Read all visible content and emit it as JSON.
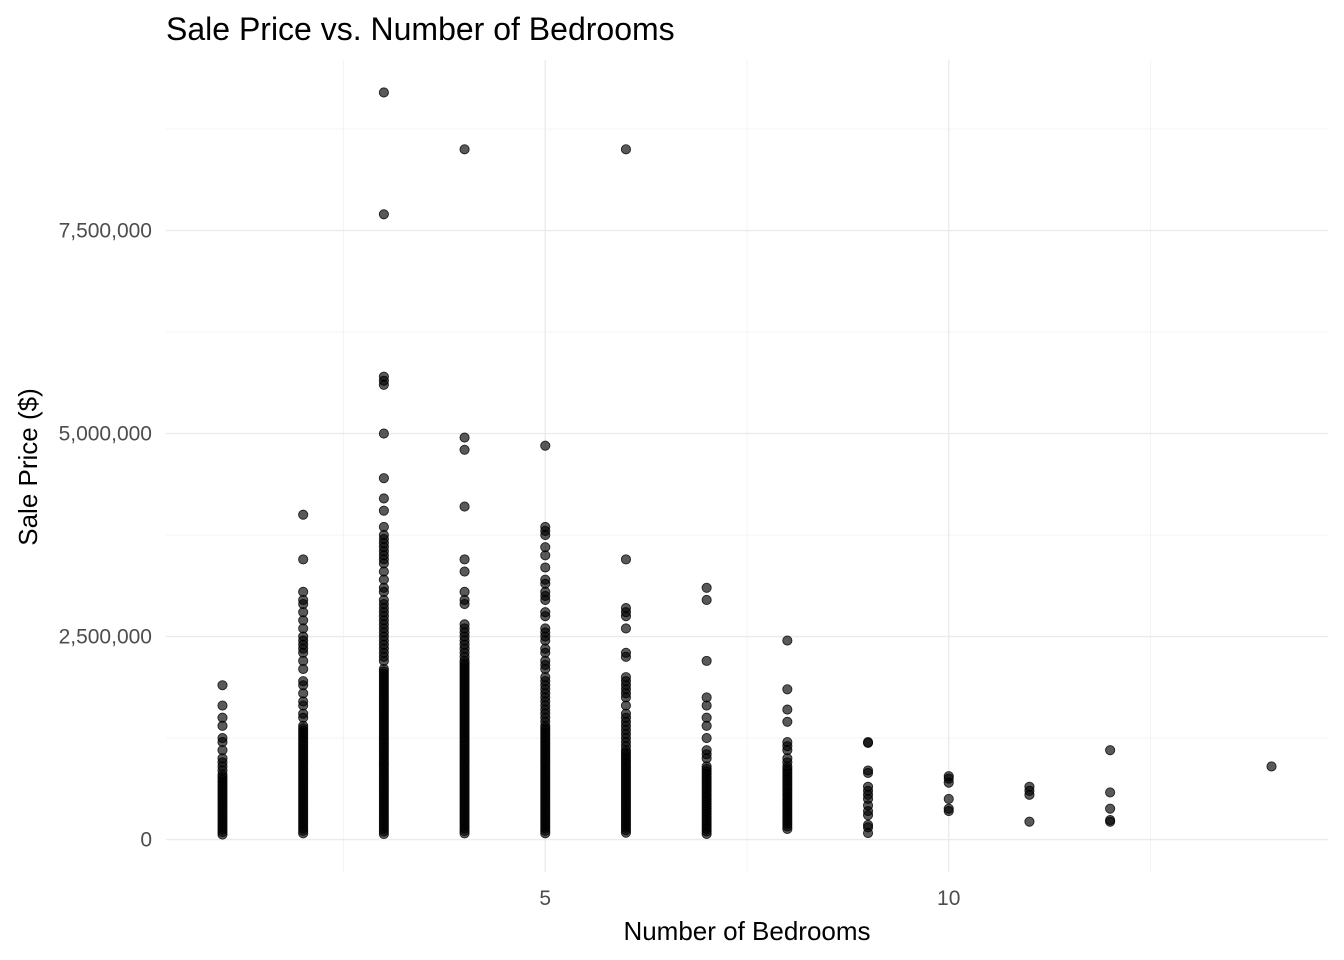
{
  "chart_data": {
    "type": "scatter",
    "title": "Sale Price vs. Number of Bedrooms",
    "xlabel": "Number of Bedrooms",
    "ylabel": "Sale Price ($)",
    "xlim": [
      0.3,
      14.7
    ],
    "ylim": [
      -400000,
      9600000
    ],
    "x_ticks": [
      5,
      10
    ],
    "x_tick_labels": [
      "5",
      "10"
    ],
    "x_minor_ticks": [
      2.5,
      7.5,
      12.5
    ],
    "y_ticks": [
      0,
      2500000,
      5000000,
      7500000
    ],
    "y_tick_labels": [
      "0",
      "2,500,000",
      "5,000,000",
      "7,500,000"
    ],
    "y_minor_ticks": [
      1250000,
      3750000,
      6250000,
      8750000
    ],
    "grid": true,
    "point_color": "#000000",
    "point_opacity": 0.65,
    "columns": [
      {
        "x": 1,
        "min": 50000,
        "max": 800000
      },
      {
        "x": 2,
        "min": 50000,
        "max": 1400000
      },
      {
        "x": 3,
        "min": 50000,
        "max": 2100000
      },
      {
        "x": 4,
        "min": 50000,
        "max": 2200000
      },
      {
        "x": 5,
        "min": 50000,
        "max": 1400000
      },
      {
        "x": 6,
        "min": 60000,
        "max": 1100000
      },
      {
        "x": 7,
        "min": 60000,
        "max": 900000
      },
      {
        "x": 8,
        "min": 120000,
        "max": 900000
      }
    ],
    "points": [
      {
        "x": 1,
        "y": 1900000
      },
      {
        "x": 1,
        "y": 1650000
      },
      {
        "x": 1,
        "y": 1500000
      },
      {
        "x": 1,
        "y": 1400000
      },
      {
        "x": 1,
        "y": 1250000
      },
      {
        "x": 1,
        "y": 1200000
      },
      {
        "x": 1,
        "y": 1100000
      },
      {
        "x": 1,
        "y": 1000000
      },
      {
        "x": 1,
        "y": 950000
      },
      {
        "x": 1,
        "y": 900000
      },
      {
        "x": 1,
        "y": 850000
      },
      {
        "x": 2,
        "y": 4000000
      },
      {
        "x": 2,
        "y": 3450000
      },
      {
        "x": 2,
        "y": 3050000
      },
      {
        "x": 2,
        "y": 2950000
      },
      {
        "x": 2,
        "y": 2900000
      },
      {
        "x": 2,
        "y": 2800000
      },
      {
        "x": 2,
        "y": 2700000
      },
      {
        "x": 2,
        "y": 2600000
      },
      {
        "x": 2,
        "y": 2500000
      },
      {
        "x": 2,
        "y": 2450000
      },
      {
        "x": 2,
        "y": 2400000
      },
      {
        "x": 2,
        "y": 2350000
      },
      {
        "x": 2,
        "y": 2300000
      },
      {
        "x": 2,
        "y": 2200000
      },
      {
        "x": 2,
        "y": 2100000
      },
      {
        "x": 2,
        "y": 1950000
      },
      {
        "x": 2,
        "y": 1900000
      },
      {
        "x": 2,
        "y": 1800000
      },
      {
        "x": 2,
        "y": 1700000
      },
      {
        "x": 2,
        "y": 1650000
      },
      {
        "x": 2,
        "y": 1550000
      },
      {
        "x": 2,
        "y": 1500000
      },
      {
        "x": 3,
        "y": 9200000
      },
      {
        "x": 3,
        "y": 7700000
      },
      {
        "x": 3,
        "y": 5700000
      },
      {
        "x": 3,
        "y": 5650000
      },
      {
        "x": 3,
        "y": 5600000
      },
      {
        "x": 3,
        "y": 5000000
      },
      {
        "x": 3,
        "y": 4450000
      },
      {
        "x": 3,
        "y": 4200000
      },
      {
        "x": 3,
        "y": 4050000
      },
      {
        "x": 3,
        "y": 3850000
      },
      {
        "x": 3,
        "y": 3750000
      },
      {
        "x": 3,
        "y": 3700000
      },
      {
        "x": 3,
        "y": 3650000
      },
      {
        "x": 3,
        "y": 3600000
      },
      {
        "x": 3,
        "y": 3550000
      },
      {
        "x": 3,
        "y": 3500000
      },
      {
        "x": 3,
        "y": 3450000
      },
      {
        "x": 3,
        "y": 3400000
      },
      {
        "x": 3,
        "y": 3300000
      },
      {
        "x": 3,
        "y": 3200000
      },
      {
        "x": 3,
        "y": 3100000
      },
      {
        "x": 3,
        "y": 3050000
      },
      {
        "x": 3,
        "y": 2950000
      },
      {
        "x": 3,
        "y": 2900000
      },
      {
        "x": 3,
        "y": 2850000
      },
      {
        "x": 3,
        "y": 2800000
      },
      {
        "x": 3,
        "y": 2750000
      },
      {
        "x": 3,
        "y": 2700000
      },
      {
        "x": 3,
        "y": 2650000
      },
      {
        "x": 3,
        "y": 2600000
      },
      {
        "x": 3,
        "y": 2550000
      },
      {
        "x": 3,
        "y": 2500000
      },
      {
        "x": 3,
        "y": 2450000
      },
      {
        "x": 3,
        "y": 2400000
      },
      {
        "x": 3,
        "y": 2350000
      },
      {
        "x": 3,
        "y": 2300000
      },
      {
        "x": 3,
        "y": 2250000
      },
      {
        "x": 3,
        "y": 2200000
      },
      {
        "x": 4,
        "y": 8500000
      },
      {
        "x": 4,
        "y": 4950000
      },
      {
        "x": 4,
        "y": 4800000
      },
      {
        "x": 4,
        "y": 4100000
      },
      {
        "x": 4,
        "y": 3450000
      },
      {
        "x": 4,
        "y": 3300000
      },
      {
        "x": 4,
        "y": 3050000
      },
      {
        "x": 4,
        "y": 2950000
      },
      {
        "x": 4,
        "y": 2900000
      },
      {
        "x": 4,
        "y": 2650000
      },
      {
        "x": 4,
        "y": 2600000
      },
      {
        "x": 4,
        "y": 2550000
      },
      {
        "x": 4,
        "y": 2500000
      },
      {
        "x": 4,
        "y": 2450000
      },
      {
        "x": 4,
        "y": 2400000
      },
      {
        "x": 4,
        "y": 2350000
      },
      {
        "x": 4,
        "y": 2300000
      },
      {
        "x": 4,
        "y": 2250000
      },
      {
        "x": 5,
        "y": 4850000
      },
      {
        "x": 5,
        "y": 3850000
      },
      {
        "x": 5,
        "y": 3800000
      },
      {
        "x": 5,
        "y": 3750000
      },
      {
        "x": 5,
        "y": 3600000
      },
      {
        "x": 5,
        "y": 3500000
      },
      {
        "x": 5,
        "y": 3350000
      },
      {
        "x": 5,
        "y": 3200000
      },
      {
        "x": 5,
        "y": 3150000
      },
      {
        "x": 5,
        "y": 3050000
      },
      {
        "x": 5,
        "y": 3000000
      },
      {
        "x": 5,
        "y": 2950000
      },
      {
        "x": 5,
        "y": 2800000
      },
      {
        "x": 5,
        "y": 2750000
      },
      {
        "x": 5,
        "y": 2600000
      },
      {
        "x": 5,
        "y": 2550000
      },
      {
        "x": 5,
        "y": 2500000
      },
      {
        "x": 5,
        "y": 2450000
      },
      {
        "x": 5,
        "y": 2350000
      },
      {
        "x": 5,
        "y": 2300000
      },
      {
        "x": 5,
        "y": 2200000
      },
      {
        "x": 5,
        "y": 2150000
      },
      {
        "x": 5,
        "y": 2100000
      },
      {
        "x": 5,
        "y": 2000000
      },
      {
        "x": 5,
        "y": 1950000
      },
      {
        "x": 5,
        "y": 1900000
      },
      {
        "x": 5,
        "y": 1850000
      },
      {
        "x": 5,
        "y": 1800000
      },
      {
        "x": 5,
        "y": 1750000
      },
      {
        "x": 5,
        "y": 1700000
      },
      {
        "x": 5,
        "y": 1650000
      },
      {
        "x": 5,
        "y": 1600000
      },
      {
        "x": 5,
        "y": 1550000
      },
      {
        "x": 5,
        "y": 1500000
      },
      {
        "x": 5,
        "y": 1450000
      },
      {
        "x": 6,
        "y": 8500000
      },
      {
        "x": 6,
        "y": 3450000
      },
      {
        "x": 6,
        "y": 2850000
      },
      {
        "x": 6,
        "y": 2800000
      },
      {
        "x": 6,
        "y": 2750000
      },
      {
        "x": 6,
        "y": 2600000
      },
      {
        "x": 6,
        "y": 2300000
      },
      {
        "x": 6,
        "y": 2250000
      },
      {
        "x": 6,
        "y": 2000000
      },
      {
        "x": 6,
        "y": 1950000
      },
      {
        "x": 6,
        "y": 1900000
      },
      {
        "x": 6,
        "y": 1850000
      },
      {
        "x": 6,
        "y": 1800000
      },
      {
        "x": 6,
        "y": 1750000
      },
      {
        "x": 6,
        "y": 1650000
      },
      {
        "x": 6,
        "y": 1550000
      },
      {
        "x": 6,
        "y": 1500000
      },
      {
        "x": 6,
        "y": 1450000
      },
      {
        "x": 6,
        "y": 1400000
      },
      {
        "x": 6,
        "y": 1350000
      },
      {
        "x": 6,
        "y": 1300000
      },
      {
        "x": 6,
        "y": 1250000
      },
      {
        "x": 6,
        "y": 1200000
      },
      {
        "x": 6,
        "y": 1150000
      },
      {
        "x": 7,
        "y": 3100000
      },
      {
        "x": 7,
        "y": 2950000
      },
      {
        "x": 7,
        "y": 2200000
      },
      {
        "x": 7,
        "y": 1750000
      },
      {
        "x": 7,
        "y": 1650000
      },
      {
        "x": 7,
        "y": 1500000
      },
      {
        "x": 7,
        "y": 1400000
      },
      {
        "x": 7,
        "y": 1250000
      },
      {
        "x": 7,
        "y": 1100000
      },
      {
        "x": 7,
        "y": 1050000
      },
      {
        "x": 7,
        "y": 1000000
      },
      {
        "x": 8,
        "y": 2450000
      },
      {
        "x": 8,
        "y": 1850000
      },
      {
        "x": 8,
        "y": 1600000
      },
      {
        "x": 8,
        "y": 1450000
      },
      {
        "x": 8,
        "y": 1200000
      },
      {
        "x": 8,
        "y": 1150000
      },
      {
        "x": 8,
        "y": 1100000
      },
      {
        "x": 8,
        "y": 1000000
      },
      {
        "x": 8,
        "y": 950000
      },
      {
        "x": 9,
        "y": 1200000
      },
      {
        "x": 9,
        "y": 1190000
      },
      {
        "x": 9,
        "y": 850000
      },
      {
        "x": 9,
        "y": 820000
      },
      {
        "x": 9,
        "y": 650000
      },
      {
        "x": 9,
        "y": 600000
      },
      {
        "x": 9,
        "y": 550000
      },
      {
        "x": 9,
        "y": 500000
      },
      {
        "x": 9,
        "y": 420000
      },
      {
        "x": 9,
        "y": 350000
      },
      {
        "x": 9,
        "y": 300000
      },
      {
        "x": 9,
        "y": 180000
      },
      {
        "x": 9,
        "y": 150000
      },
      {
        "x": 9,
        "y": 80000
      },
      {
        "x": 10,
        "y": 780000
      },
      {
        "x": 10,
        "y": 750000
      },
      {
        "x": 10,
        "y": 700000
      },
      {
        "x": 10,
        "y": 500000
      },
      {
        "x": 10,
        "y": 380000
      },
      {
        "x": 10,
        "y": 350000
      },
      {
        "x": 11,
        "y": 650000
      },
      {
        "x": 11,
        "y": 600000
      },
      {
        "x": 11,
        "y": 550000
      },
      {
        "x": 11,
        "y": 220000
      },
      {
        "x": 12,
        "y": 1100000
      },
      {
        "x": 12,
        "y": 580000
      },
      {
        "x": 12,
        "y": 380000
      },
      {
        "x": 12,
        "y": 240000
      },
      {
        "x": 12,
        "y": 220000
      },
      {
        "x": 14,
        "y": 900000
      }
    ]
  }
}
